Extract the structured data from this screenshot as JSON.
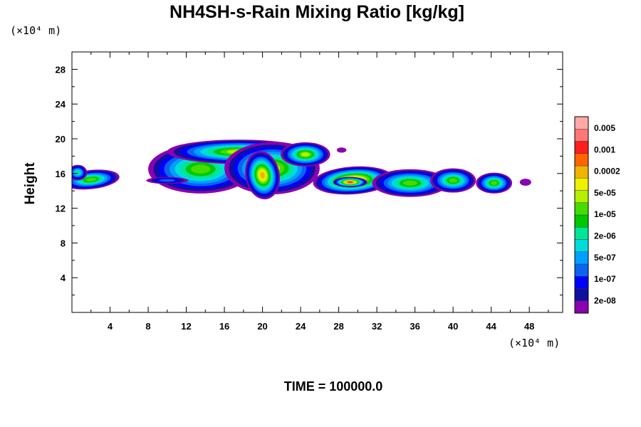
{
  "chart_data": {
    "type": "contour",
    "title": "NH4SH-s-Rain Mixing Ratio [kg/kg]",
    "ylabel": "Height",
    "xlabel": "",
    "x_unit": "(×10⁴ m)",
    "y_unit": "(×10⁴ m)",
    "xlim": [
      0,
      51.5
    ],
    "ylim": [
      0,
      30
    ],
    "x_ticks": [
      "4",
      "8",
      "12",
      "16",
      "20",
      "24",
      "28",
      "32",
      "36",
      "40",
      "44",
      "48"
    ],
    "y_ticks": [
      "4",
      "8",
      "12",
      "16",
      "20",
      "24",
      "28"
    ],
    "legend_labels": [
      "0.005",
      "0.001",
      "0.0002",
      "5e-05",
      "1e-05",
      "2e-06",
      "5e-07",
      "1e-07",
      "2e-08"
    ],
    "colors": [
      "#8b00b0",
      "#1010a0",
      "#0000ff",
      "#0a64f0",
      "#00a0ff",
      "#00dcdc",
      "#00e696",
      "#00c800",
      "#46dc00",
      "#b4f000",
      "#f0f000",
      "#f0b400",
      "#ff6400",
      "#ff1e1e",
      "#ff7777",
      "#ffa8a8"
    ],
    "footer": "TIME = 100000.0",
    "blobs": [
      {
        "name": "cloud-far-left",
        "x": 2.0,
        "y": 15.3,
        "rx": 3.0,
        "ry": 1.1,
        "angle": -6,
        "peak": 8
      },
      {
        "name": "cloud-far-left-tail",
        "x": 0.6,
        "y": 16.1,
        "rx": 1.0,
        "ry": 0.9,
        "angle": 0,
        "peak": 6
      },
      {
        "name": "cloud-main-left",
        "x": 13.5,
        "y": 16.5,
        "rx": 5.5,
        "ry": 2.8,
        "angle": 0,
        "peak": 8
      },
      {
        "name": "cloud-main-top",
        "x": 17.5,
        "y": 18.5,
        "rx": 7.5,
        "ry": 1.4,
        "angle": 0,
        "peak": 9
      },
      {
        "name": "cloud-main-center",
        "x": 21.0,
        "y": 16.6,
        "rx": 5.0,
        "ry": 3.0,
        "angle": 0,
        "peak": 9
      },
      {
        "name": "cloud-main-core",
        "x": 20.0,
        "y": 15.8,
        "rx": 1.8,
        "ry": 2.8,
        "angle": -10,
        "peak": 11
      },
      {
        "name": "cloud-main-right",
        "x": 24.5,
        "y": 18.2,
        "rx": 2.6,
        "ry": 1.4,
        "angle": 0,
        "peak": 9
      },
      {
        "name": "cloud-main-tail",
        "x": 10.0,
        "y": 15.2,
        "rx": 2.2,
        "ry": 0.4,
        "angle": 0,
        "peak": 3
      },
      {
        "name": "cloud-right-1",
        "x": 29.5,
        "y": 15.2,
        "rx": 4.2,
        "ry": 1.6,
        "angle": -4,
        "peak": 12
      },
      {
        "name": "cloud-right-1-core",
        "x": 29.2,
        "y": 15.0,
        "rx": 1.8,
        "ry": 0.6,
        "angle": 0,
        "peak": 13
      },
      {
        "name": "cloud-right-2",
        "x": 35.5,
        "y": 14.9,
        "rx": 4.0,
        "ry": 1.6,
        "angle": 0,
        "peak": 8
      },
      {
        "name": "cloud-right-3",
        "x": 40.0,
        "y": 15.2,
        "rx": 2.4,
        "ry": 1.4,
        "angle": 0,
        "peak": 8
      },
      {
        "name": "cloud-right-4",
        "x": 44.3,
        "y": 14.9,
        "rx": 1.9,
        "ry": 1.2,
        "angle": 0,
        "peak": 8
      },
      {
        "name": "cloud-speck-right",
        "x": 47.6,
        "y": 15.0,
        "rx": 0.6,
        "ry": 0.4,
        "angle": 0,
        "peak": 0
      },
      {
        "name": "cloud-speck-top",
        "x": 28.3,
        "y": 18.7,
        "rx": 0.5,
        "ry": 0.3,
        "angle": 0,
        "peak": 0
      }
    ]
  }
}
